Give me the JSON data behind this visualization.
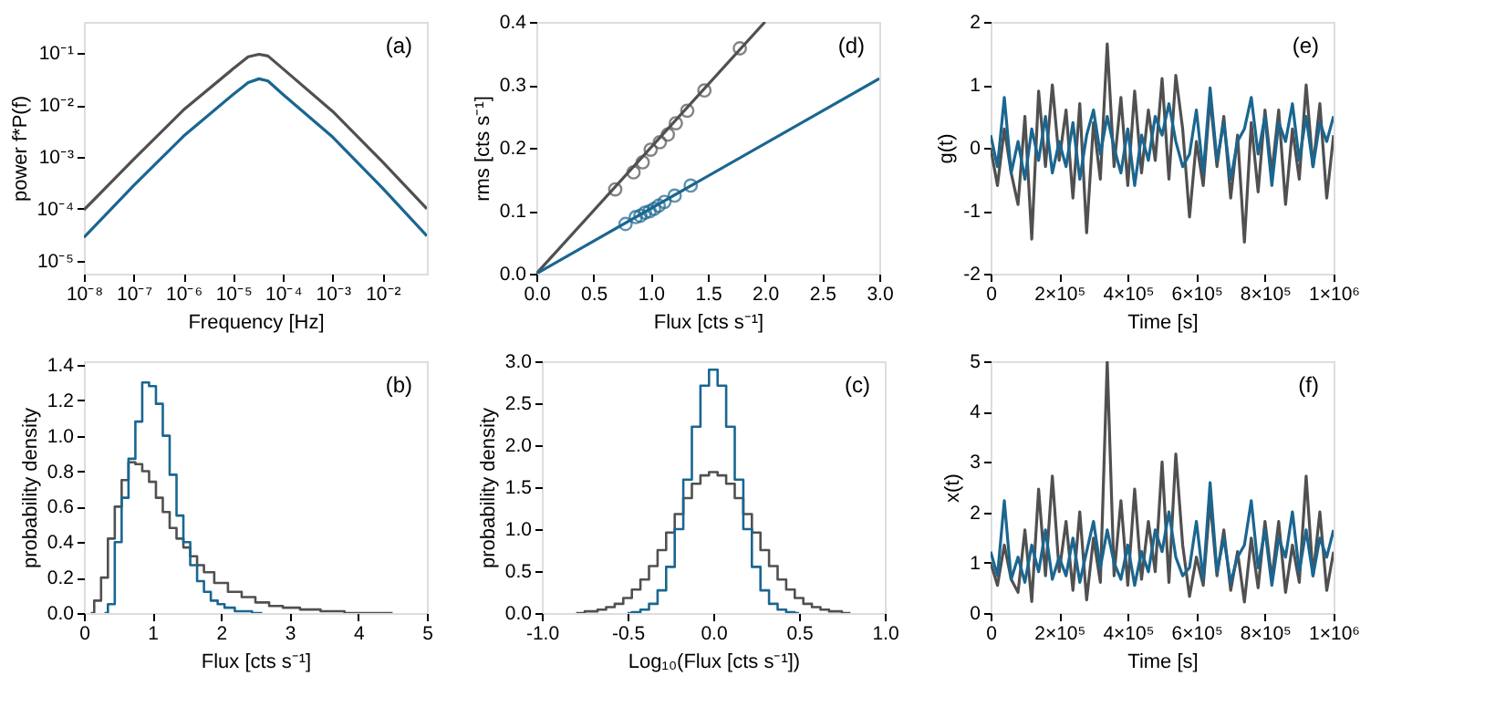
{
  "chart_data": [
    {
      "type": "line",
      "log": "xy",
      "xlabel": "Frequency [Hz]",
      "ylabel": "power f*P(f)",
      "annotations": [
        "(a)"
      ],
      "xlim": [
        1e-08,
        0.078
      ],
      "ylim": [
        5.6e-06,
        0.4
      ],
      "xticks": [
        {
          "value": 1e-08,
          "label": "10⁻⁸"
        },
        {
          "value": 1e-07,
          "label": "10⁻⁷"
        },
        {
          "value": 1e-06,
          "label": "10⁻⁶"
        },
        {
          "value": 1e-05,
          "label": "10⁻⁵"
        },
        {
          "value": 0.0001,
          "label": "10⁻⁴"
        },
        {
          "value": 0.001,
          "label": "10⁻³"
        },
        {
          "value": 0.01,
          "label": "10⁻²"
        }
      ],
      "yticks": [
        {
          "value": 1e-05,
          "label": "10⁻⁵"
        },
        {
          "value": 0.0001,
          "label": "10⁻⁴"
        },
        {
          "value": 0.001,
          "label": "10⁻³"
        },
        {
          "value": 0.01,
          "label": "10⁻²"
        },
        {
          "value": 0.1,
          "label": "10⁻¹"
        }
      ],
      "x": [
        1e-08,
        1e-07,
        1e-06,
        1e-05,
        2e-05,
        3.3e-05,
        5e-05,
        0.0001,
        0.001,
        0.01,
        0.078
      ],
      "series": [
        {
          "color": "#505050",
          "values": [
            9.5e-05,
            0.0009,
            0.008,
            0.05,
            0.085,
            0.095,
            0.088,
            0.05,
            0.0075,
            0.0008,
            0.0001
          ]
        },
        {
          "color": "#1a6690",
          "values": [
            2.8e-05,
            0.00028,
            0.0025,
            0.016,
            0.027,
            0.032,
            0.029,
            0.016,
            0.0024,
            0.00025,
            3e-05
          ]
        }
      ]
    },
    {
      "type": "scatter",
      "xlabel": "Flux [cts s⁻¹]",
      "ylabel": "rms [cts s⁻¹]",
      "annotations": [
        "(d)"
      ],
      "xlim": [
        0,
        3
      ],
      "ylim": [
        0,
        0.4
      ],
      "xticks": [
        {
          "value": 0,
          "label": "0.0"
        },
        0.5,
        {
          "value": 1,
          "label": "1.0"
        },
        1.5,
        {
          "value": 2,
          "label": "2.0"
        },
        2.5,
        {
          "value": 3,
          "label": "3.0"
        }
      ],
      "yticks": [
        {
          "value": 0,
          "label": "0.0"
        },
        0.1,
        0.2,
        0.3,
        0.4
      ],
      "series": [
        {
          "type": "scatter",
          "marker": "circle",
          "color": "#505050",
          "x": [
            0.69,
            0.85,
            0.93,
            1.0,
            1.08,
            1.15,
            1.22,
            1.32,
            1.47,
            1.78
          ],
          "values": [
            0.134,
            0.161,
            0.177,
            0.197,
            0.209,
            0.221,
            0.239,
            0.259,
            0.291,
            0.358
          ]
        },
        {
          "type": "line",
          "color": "#505050",
          "x": [
            0,
            2.0
          ],
          "values": [
            0,
            0.4
          ]
        },
        {
          "type": "scatter",
          "marker": "circle",
          "color": "#1a6690",
          "x": [
            0.78,
            0.87,
            0.91,
            0.95,
            0.99,
            1.03,
            1.07,
            1.12,
            1.21,
            1.35
          ],
          "values": [
            0.079,
            0.09,
            0.092,
            0.097,
            0.099,
            0.103,
            0.108,
            0.114,
            0.124,
            0.14
          ]
        },
        {
          "type": "line",
          "color": "#1a6690",
          "x": [
            0,
            3.0
          ],
          "values": [
            0,
            0.31
          ]
        }
      ]
    },
    {
      "type": "line",
      "xlabel": "Time [s]",
      "ylabel": "g(t)",
      "annotations": [
        "(e)"
      ],
      "xlim": [
        0,
        1000000
      ],
      "ylim": [
        -2,
        2
      ],
      "xticks": [
        0,
        {
          "value": 200000,
          "label": "2×10⁵"
        },
        {
          "value": 400000,
          "label": "4×10⁵"
        },
        {
          "value": 600000,
          "label": "6×10⁵"
        },
        {
          "value": 800000,
          "label": "8×10⁵"
        },
        {
          "value": 1000000,
          "label": "1×10⁶"
        }
      ],
      "yticks": [
        -2,
        -1,
        0,
        1,
        2
      ],
      "x": [
        0,
        20000,
        40000,
        60000,
        80000,
        100000,
        120000,
        140000,
        160000,
        180000,
        200000,
        220000,
        240000,
        260000,
        280000,
        300000,
        320000,
        340000,
        360000,
        380000,
        400000,
        420000,
        440000,
        460000,
        480000,
        500000,
        520000,
        540000,
        560000,
        580000,
        600000,
        620000,
        640000,
        660000,
        680000,
        700000,
        720000,
        740000,
        760000,
        780000,
        800000,
        820000,
        840000,
        860000,
        880000,
        900000,
        920000,
        940000,
        960000,
        980000,
        1000000
      ],
      "series": [
        {
          "color": "#505050",
          "values": [
            0.0,
            -0.6,
            0.3,
            -0.4,
            -0.9,
            0.5,
            -1.45,
            0.9,
            -0.3,
            1.0,
            -0.2,
            0.6,
            -0.8,
            0.7,
            -1.35,
            0.4,
            -0.5,
            1.65,
            -0.3,
            0.8,
            -0.6,
            0.9,
            -0.4,
            0.6,
            -0.2,
            1.1,
            -0.5,
            1.15,
            0.3,
            -1.1,
            0.1,
            -0.6,
            0.8,
            -0.3,
            0.5,
            -0.8,
            0.2,
            -1.5,
            0.4,
            -0.7,
            0.6,
            -0.4,
            0.6,
            -0.9,
            0.3,
            -0.5,
            1.0,
            -0.3,
            0.7,
            -0.8,
            0.2
          ]
        },
        {
          "color": "#1a6690",
          "values": [
            0.2,
            -0.3,
            0.8,
            -0.4,
            0.1,
            -0.5,
            0.3,
            -0.2,
            0.5,
            -0.4,
            0.1,
            -0.3,
            0.4,
            -0.5,
            0.2,
            0.6,
            -0.1,
            0.5,
            0.0,
            -0.4,
            0.3,
            -0.6,
            0.2,
            -0.2,
            0.5,
            0.2,
            0.7,
            0.1,
            -0.3,
            -0.1,
            0.6,
            -0.4,
            0.95,
            -0.2,
            0.4,
            -0.5,
            0.1,
            0.3,
            0.8,
            -0.1,
            0.5,
            -0.6,
            0.4,
            0.1,
            0.7,
            -0.2,
            0.5,
            -0.3,
            0.4,
            0.1,
            0.5
          ]
        }
      ]
    },
    {
      "type": "step",
      "xlabel": "Flux [cts s⁻¹]",
      "ylabel": "probability density",
      "annotations": [
        "(b)"
      ],
      "xlim": [
        0,
        5
      ],
      "ylim": [
        0,
        1.42
      ],
      "xticks": [
        0,
        1,
        2,
        3,
        4,
        5
      ],
      "yticks": [
        {
          "value": 0,
          "label": "0.0"
        },
        0.2,
        0.4,
        0.6,
        0.8,
        {
          "value": 1,
          "label": "1.0"
        },
        1.2,
        1.4
      ],
      "series": [
        {
          "color": "#505050",
          "x": [
            0.1,
            0.2,
            0.3,
            0.4,
            0.5,
            0.6,
            0.7,
            0.8,
            0.9,
            1.0,
            1.1,
            1.2,
            1.3,
            1.4,
            1.5,
            1.6,
            1.7,
            1.8,
            2.0,
            2.2,
            2.4,
            2.6,
            2.8,
            3.0,
            3.3,
            3.6,
            4.0,
            4.5
          ],
          "values": [
            0,
            0.07,
            0.2,
            0.42,
            0.6,
            0.75,
            0.85,
            0.84,
            0.8,
            0.74,
            0.65,
            0.57,
            0.48,
            0.42,
            0.37,
            0.32,
            0.27,
            0.23,
            0.17,
            0.12,
            0.09,
            0.06,
            0.04,
            0.03,
            0.02,
            0.01,
            0,
            0
          ]
        },
        {
          "color": "#1a6690",
          "x": [
            0.3,
            0.4,
            0.5,
            0.6,
            0.7,
            0.8,
            0.9,
            1.0,
            1.1,
            1.2,
            1.3,
            1.4,
            1.5,
            1.6,
            1.7,
            1.8,
            1.9,
            2.0,
            2.1,
            2.3,
            2.6
          ],
          "values": [
            0,
            0.05,
            0.4,
            0.65,
            0.87,
            1.08,
            1.3,
            1.28,
            1.18,
            1.0,
            0.78,
            0.55,
            0.4,
            0.27,
            0.18,
            0.12,
            0.07,
            0.05,
            0.03,
            0.01,
            0
          ]
        }
      ]
    },
    {
      "type": "step",
      "xlabel": "Log₁₀(Flux [cts s⁻¹])",
      "ylabel": "probability density",
      "annotations": [
        "(c)"
      ],
      "xlim": [
        -1,
        1
      ],
      "ylim": [
        0,
        3
      ],
      "xticks": [
        {
          "value": -1,
          "label": "-1.0"
        },
        -0.5,
        {
          "value": 0,
          "label": "0.0"
        },
        0.5,
        {
          "value": 1,
          "label": "1.0"
        }
      ],
      "yticks": [
        {
          "value": 0,
          "label": "0.0"
        },
        0.5,
        {
          "value": 1,
          "label": "1.0"
        },
        1.5,
        {
          "value": 2,
          "label": "2.0"
        },
        2.5,
        {
          "value": 3,
          "label": "3.0"
        }
      ],
      "series": [
        {
          "color": "#505050",
          "x": [
            -0.8,
            -0.7,
            -0.65,
            -0.6,
            -0.55,
            -0.5,
            -0.45,
            -0.4,
            -0.35,
            -0.3,
            -0.25,
            -0.2,
            -0.15,
            -0.1,
            -0.05,
            0,
            0.05,
            0.1,
            0.15,
            0.2,
            0.25,
            0.3,
            0.35,
            0.4,
            0.45,
            0.5,
            0.55,
            0.6,
            0.65,
            0.7,
            0.8
          ],
          "values": [
            0,
            0.02,
            0.04,
            0.07,
            0.11,
            0.18,
            0.28,
            0.4,
            0.56,
            0.75,
            0.96,
            1.18,
            1.37,
            1.54,
            1.64,
            1.68,
            1.64,
            1.54,
            1.37,
            1.18,
            0.96,
            0.75,
            0.56,
            0.4,
            0.28,
            0.18,
            0.11,
            0.07,
            0.04,
            0.02,
            0
          ]
        },
        {
          "color": "#1a6690",
          "x": [
            -0.5,
            -0.45,
            -0.4,
            -0.35,
            -0.3,
            -0.25,
            -0.2,
            -0.15,
            -0.1,
            -0.05,
            0,
            0.05,
            0.1,
            0.15,
            0.2,
            0.25,
            0.3,
            0.35,
            0.4,
            0.45,
            0.5
          ],
          "values": [
            0,
            0.01,
            0.04,
            0.11,
            0.27,
            0.55,
            1.0,
            1.59,
            2.22,
            2.71,
            2.9,
            2.71,
            2.22,
            1.59,
            1.0,
            0.55,
            0.27,
            0.11,
            0.04,
            0.01,
            0
          ]
        }
      ]
    },
    {
      "type": "line",
      "xlabel": "Time [s]",
      "ylabel": "x(t)",
      "annotations": [
        "(f)"
      ],
      "xlim": [
        0,
        1000000
      ],
      "ylim": [
        0,
        5
      ],
      "xticks": [
        0,
        {
          "value": 200000,
          "label": "2×10⁵"
        },
        {
          "value": 400000,
          "label": "4×10⁵"
        },
        {
          "value": 600000,
          "label": "6×10⁵"
        },
        {
          "value": 800000,
          "label": "8×10⁵"
        },
        {
          "value": 1000000,
          "label": "1×10⁶"
        }
      ],
      "yticks": [
        0,
        1,
        2,
        3,
        4,
        5
      ],
      "x": [
        0,
        20000,
        40000,
        60000,
        80000,
        100000,
        120000,
        140000,
        160000,
        180000,
        200000,
        220000,
        240000,
        260000,
        280000,
        300000,
        320000,
        340000,
        360000,
        380000,
        400000,
        420000,
        440000,
        460000,
        480000,
        500000,
        520000,
        540000,
        560000,
        580000,
        600000,
        620000,
        640000,
        660000,
        680000,
        700000,
        720000,
        740000,
        760000,
        780000,
        800000,
        820000,
        840000,
        860000,
        880000,
        900000,
        920000,
        940000,
        960000,
        980000,
        1000000
      ],
      "series": [
        {
          "color": "#505050",
          "values": [
            1.0,
            0.55,
            1.35,
            0.67,
            0.41,
            1.65,
            0.23,
            2.46,
            0.74,
            2.72,
            0.82,
            1.82,
            0.45,
            2.01,
            0.26,
            1.49,
            0.61,
            5.0,
            0.74,
            2.23,
            0.55,
            2.46,
            0.67,
            1.82,
            0.82,
            3.0,
            0.61,
            3.16,
            1.35,
            0.33,
            1.11,
            0.55,
            2.23,
            0.74,
            1.65,
            0.45,
            1.22,
            0.22,
            1.49,
            0.5,
            1.82,
            0.67,
            1.82,
            0.41,
            1.35,
            0.61,
            2.72,
            0.74,
            2.01,
            0.45,
            1.22
          ]
        },
        {
          "color": "#1a6690",
          "values": [
            1.22,
            0.74,
            2.23,
            0.67,
            1.11,
            0.61,
            1.35,
            0.82,
            1.65,
            0.67,
            1.11,
            0.74,
            1.49,
            0.61,
            1.22,
            1.82,
            0.9,
            1.65,
            1.0,
            0.67,
            1.35,
            0.55,
            1.22,
            0.82,
            1.65,
            1.22,
            2.01,
            1.11,
            0.74,
            0.9,
            1.82,
            0.67,
            2.59,
            0.82,
            1.49,
            0.61,
            1.11,
            1.35,
            2.23,
            0.9,
            1.65,
            0.55,
            1.49,
            1.11,
            2.01,
            0.82,
            1.65,
            0.74,
            1.49,
            1.11,
            1.65
          ]
        }
      ]
    }
  ]
}
